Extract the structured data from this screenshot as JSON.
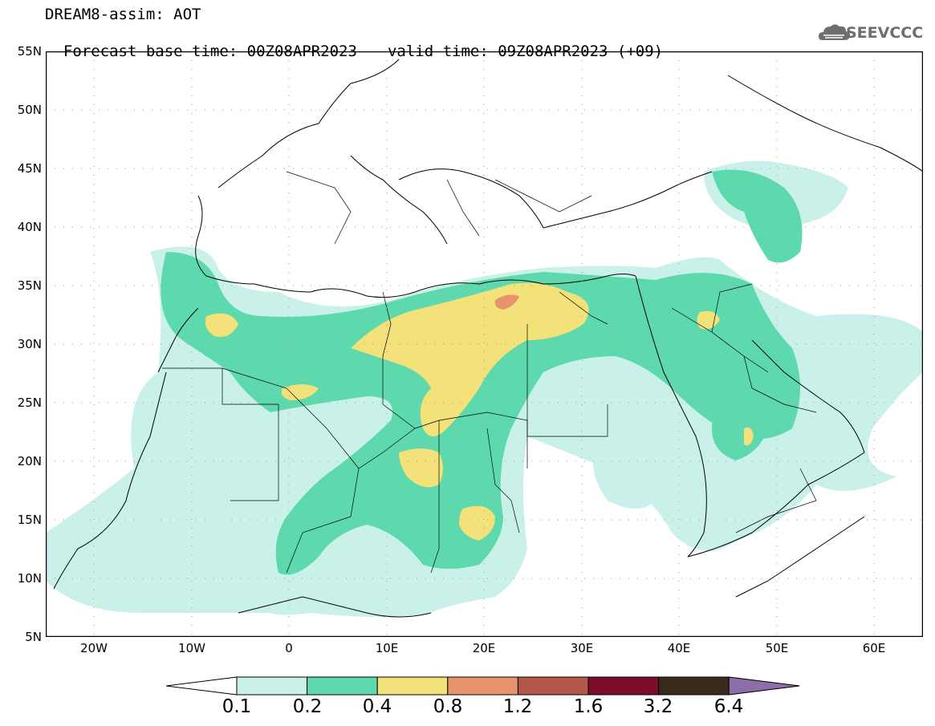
{
  "header": {
    "title_line1": "DREAM8-assim: AOT",
    "base_time": "Forecast base time: 00Z08APR2023",
    "valid_time": "valid time: 09Z08APR2023 (+09)"
  },
  "logo": {
    "text": "SEEVCCC",
    "icon": "cloud-icon"
  },
  "map": {
    "y_axis_labels": [
      "55N",
      "50N",
      "45N",
      "40N",
      "35N",
      "30N",
      "25N",
      "20N",
      "15N",
      "10N",
      "5N"
    ],
    "x_axis_labels": [
      "20W",
      "10W",
      "0",
      "10E",
      "20E",
      "30E",
      "40E",
      "50E",
      "60E"
    ],
    "lon_range": [
      -25,
      65
    ],
    "lat_range": [
      5,
      55
    ]
  },
  "colorbar": {
    "levels": [
      "0.1",
      "0.2",
      "0.4",
      "0.8",
      "1.2",
      "1.6",
      "3.2",
      "6.4"
    ],
    "colors": [
      "#ffffff",
      "#c9f1ea",
      "#5dd9ad",
      "#f3e17a",
      "#e8936d",
      "#b4584a",
      "#7b0c2a",
      "#3a2a1a",
      "#8c6fa8"
    ]
  }
}
